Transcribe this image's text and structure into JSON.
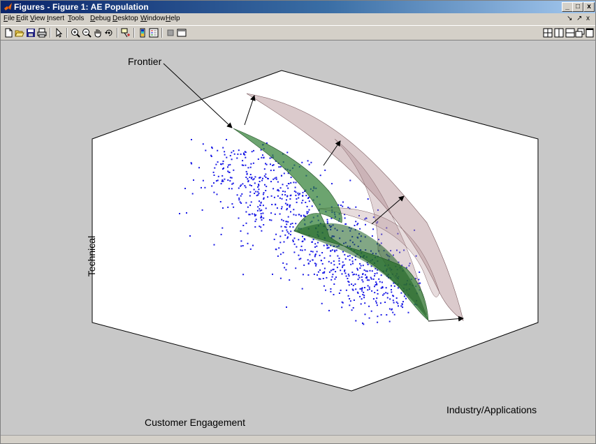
{
  "window": {
    "title": "Figures - Figure 1: AE Population",
    "controls": {
      "minimize": "_",
      "restore": "□",
      "close": "x"
    }
  },
  "menubar": {
    "items": [
      "File",
      "Edit",
      "View",
      "Insert",
      "Tools",
      "Debug",
      "Desktop",
      "Window",
      "Help"
    ],
    "underline_first_letter": true,
    "right": {
      "dock": "↘",
      "undock": "↗",
      "close": "x"
    }
  },
  "toolbar": {
    "tools": [
      "new-figure-icon",
      "open-file-icon",
      "save-icon",
      "print-icon",
      "arrow-select-icon",
      "zoom-in-icon",
      "zoom-out-icon",
      "pan-hand-icon",
      "rotate-3d-icon",
      "data-cursor-icon",
      "colorbar-icon",
      "legend-icon",
      "hide-plot-tools-icon",
      "show-plot-tools-icon"
    ],
    "layout_tools": [
      "tile-icon",
      "left-right-icon",
      "top-bottom-icon",
      "float-icon",
      "maximize-icon"
    ]
  },
  "figure": {
    "annotation": "Frontier",
    "axes": {
      "vertical_label": "Technical",
      "left_label": "Customer Engagement",
      "right_label": "Industry/Applications"
    },
    "colors": {
      "background": "#c8c8c8",
      "axes_fill": "#ffffff",
      "points": "#1a1ae6",
      "inner_surface": "#2e7d32",
      "outer_surface": "#b08a8e"
    }
  }
}
